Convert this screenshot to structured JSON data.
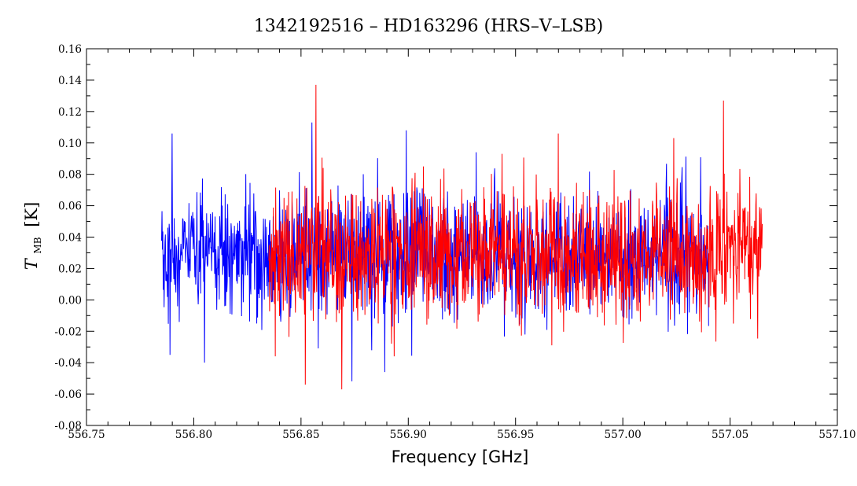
{
  "chart_data": {
    "type": "line",
    "title": "1342192516 – HD163296 (HRS–V–LSB)",
    "xlabel": "Frequency [GHz]",
    "ylabel_main": "T",
    "ylabel_sub": "MB",
    "ylabel_unit": "[K]",
    "xlim": [
      556.75,
      557.1
    ],
    "ylim": [
      -0.08,
      0.16
    ],
    "x_ticks": [
      "556.75",
      "556.80",
      "556.85",
      "556.90",
      "556.95",
      "557.00",
      "557.05",
      "557.10"
    ],
    "y_ticks": [
      "-0.08",
      "-0.06",
      "-0.04",
      "-0.02",
      "0.00",
      "0.02",
      "0.04",
      "0.06",
      "0.08",
      "0.10",
      "0.12",
      "0.14",
      "0.16"
    ],
    "grid": false,
    "series": [
      {
        "color": "#0000ff",
        "x_range": [
          556.785,
          557.04
        ],
        "mean": 0.028,
        "noise": 0.02,
        "samples": 1300,
        "peaks": [
          {
            "x": 556.79,
            "y": 0.106
          },
          {
            "x": 556.855,
            "y": 0.113
          },
          {
            "x": 556.899,
            "y": 0.108
          },
          {
            "x": 556.889,
            "y": -0.046
          },
          {
            "x": 556.805,
            "y": -0.04
          },
          {
            "x": 556.789,
            "y": -0.035
          }
        ]
      },
      {
        "color": "#ff0000",
        "x_range": [
          556.835,
          557.065
        ],
        "mean": 0.03,
        "noise": 0.021,
        "samples": 1300,
        "peaks": [
          {
            "x": 556.857,
            "y": 0.137
          },
          {
            "x": 557.047,
            "y": 0.127
          },
          {
            "x": 556.852,
            "y": -0.054
          },
          {
            "x": 556.869,
            "y": -0.057
          },
          {
            "x": 556.97,
            "y": 0.106
          },
          {
            "x": 556.838,
            "y": -0.036
          }
        ]
      }
    ]
  }
}
